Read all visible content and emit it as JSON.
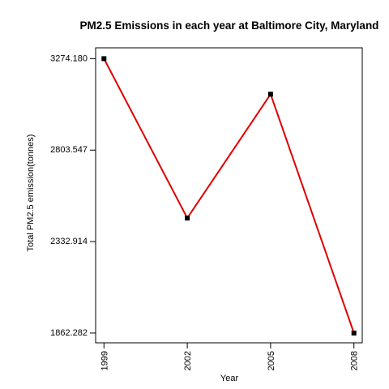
{
  "chart_data": {
    "type": "line",
    "title": "PM2.5 Emissions in each year at Baltimore City, Maryland",
    "xlabel": "Year",
    "ylabel": "Total PM2.5 emission(tonnes)",
    "x": [
      1999,
      2002,
      2005,
      2008
    ],
    "x_tick_labels": [
      "1999",
      "2002",
      "2005",
      "2008"
    ],
    "y_ticks": [
      3274.18,
      2803.547,
      2332.914,
      1862.282
    ],
    "y_tick_labels": [
      "3274.180",
      "2803.547",
      "2332.914",
      "1862.282"
    ],
    "series": [
      {
        "values": [
          3274.18,
          2453.916,
          3091.354,
          1862.282
        ]
      }
    ],
    "line_color": "#e00000",
    "point_color": "#000000",
    "xlim": [
      1998.7,
      2008.3
    ],
    "ylim": [
      1812,
      3330
    ],
    "grid": false,
    "legend": "none"
  }
}
